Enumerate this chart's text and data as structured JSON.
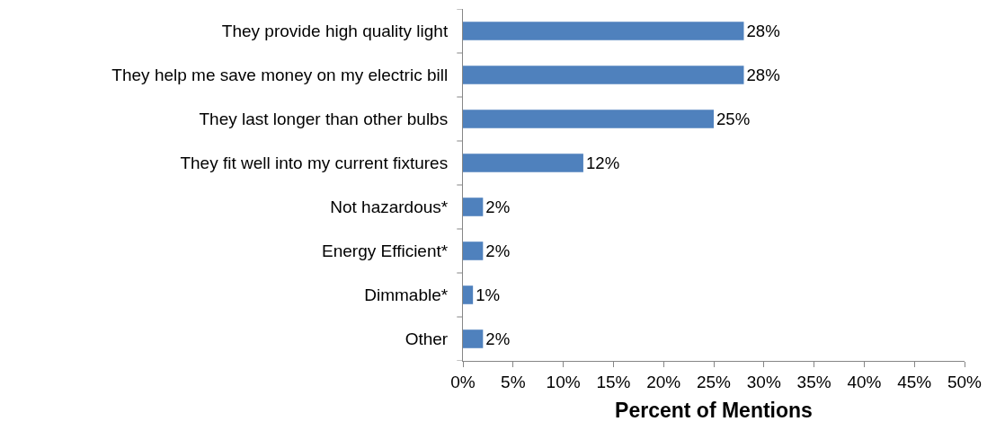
{
  "chart_data": {
    "type": "bar",
    "orientation": "horizontal",
    "xlabel": "Percent of Mentions",
    "categories": [
      "They provide high quality light",
      "They help me save money on my electric bill",
      "They last longer than other bulbs",
      "They fit well into my current fixtures",
      "Not hazardous*",
      "Energy Efficient*",
      "Dimmable*",
      "Other"
    ],
    "values": [
      28,
      28,
      25,
      12,
      2,
      2,
      1,
      2
    ],
    "value_labels": [
      "28%",
      "28%",
      "25%",
      "12%",
      "2%",
      "2%",
      "1%",
      "2%"
    ],
    "color": "#4f81bd",
    "xlim": [
      0,
      50
    ],
    "xticks": [
      {
        "value": 0,
        "label": "0%"
      },
      {
        "value": 5,
        "label": "5%"
      },
      {
        "value": 10,
        "label": "10%"
      },
      {
        "value": 15,
        "label": "15%"
      },
      {
        "value": 20,
        "label": "20%"
      },
      {
        "value": 25,
        "label": "25%"
      },
      {
        "value": 30,
        "label": "30%"
      },
      {
        "value": 35,
        "label": "35%"
      },
      {
        "value": 40,
        "label": "40%"
      },
      {
        "value": 45,
        "label": "45%"
      },
      {
        "value": 50,
        "label": "50%"
      }
    ]
  }
}
